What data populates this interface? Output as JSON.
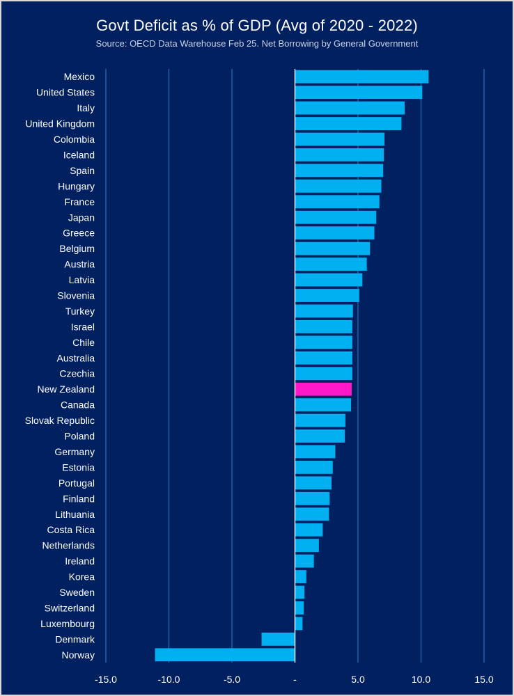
{
  "chart_data": {
    "type": "bar",
    "orientation": "horizontal",
    "title": "Govt Deficit as % of GDP (Avg of 2020 - 2022)",
    "subtitle": "Source: OECD Data Warehouse Feb 25. Net Borrowing by General Government",
    "xlabel": "",
    "ylabel": "",
    "xlim": [
      -15,
      15
    ],
    "xticks": [
      -15,
      -10,
      -5,
      0,
      5,
      10,
      15
    ],
    "xtick_labels": [
      "-15.0",
      "-10.0",
      "-5.0",
      "-",
      "5.0",
      "10.0",
      "15.0"
    ],
    "grid": "vertical",
    "legend": "none",
    "colors": {
      "default": "#00b0f0",
      "highlight": "#ff17c8",
      "background": "#002060",
      "grid": "#1f6fb5",
      "zero_line": "#e8ecf5"
    },
    "highlight_category": "New Zealand",
    "categories": [
      "Mexico",
      "United States",
      "Italy",
      "United Kingdom",
      "Colombia",
      "Iceland",
      "Spain",
      "Hungary",
      "France",
      "Japan",
      "Greece",
      "Belgium",
      "Austria",
      "Latvia",
      "Slovenia",
      "Turkey",
      "Israel",
      "Chile",
      "Australia",
      "Czechia",
      "New Zealand",
      "Canada",
      "Slovak Republic",
      "Poland",
      "Germany",
      "Estonia",
      "Portugal",
      "Finland",
      "Lithuania",
      "Costa Rica",
      "Netherlands",
      "Ireland",
      "Korea",
      "Sweden",
      "Switzerland",
      "Luxembourg",
      "Denmark",
      "Norway"
    ],
    "values": [
      10.6,
      10.1,
      8.7,
      8.45,
      7.1,
      7.05,
      7.0,
      6.85,
      6.7,
      6.45,
      6.3,
      5.95,
      5.7,
      5.35,
      5.1,
      4.6,
      4.55,
      4.55,
      4.55,
      4.55,
      4.5,
      4.45,
      4.0,
      3.95,
      3.2,
      3.0,
      2.9,
      2.75,
      2.7,
      2.2,
      1.9,
      1.5,
      0.9,
      0.75,
      0.7,
      0.6,
      -2.65,
      -11.1
    ]
  }
}
